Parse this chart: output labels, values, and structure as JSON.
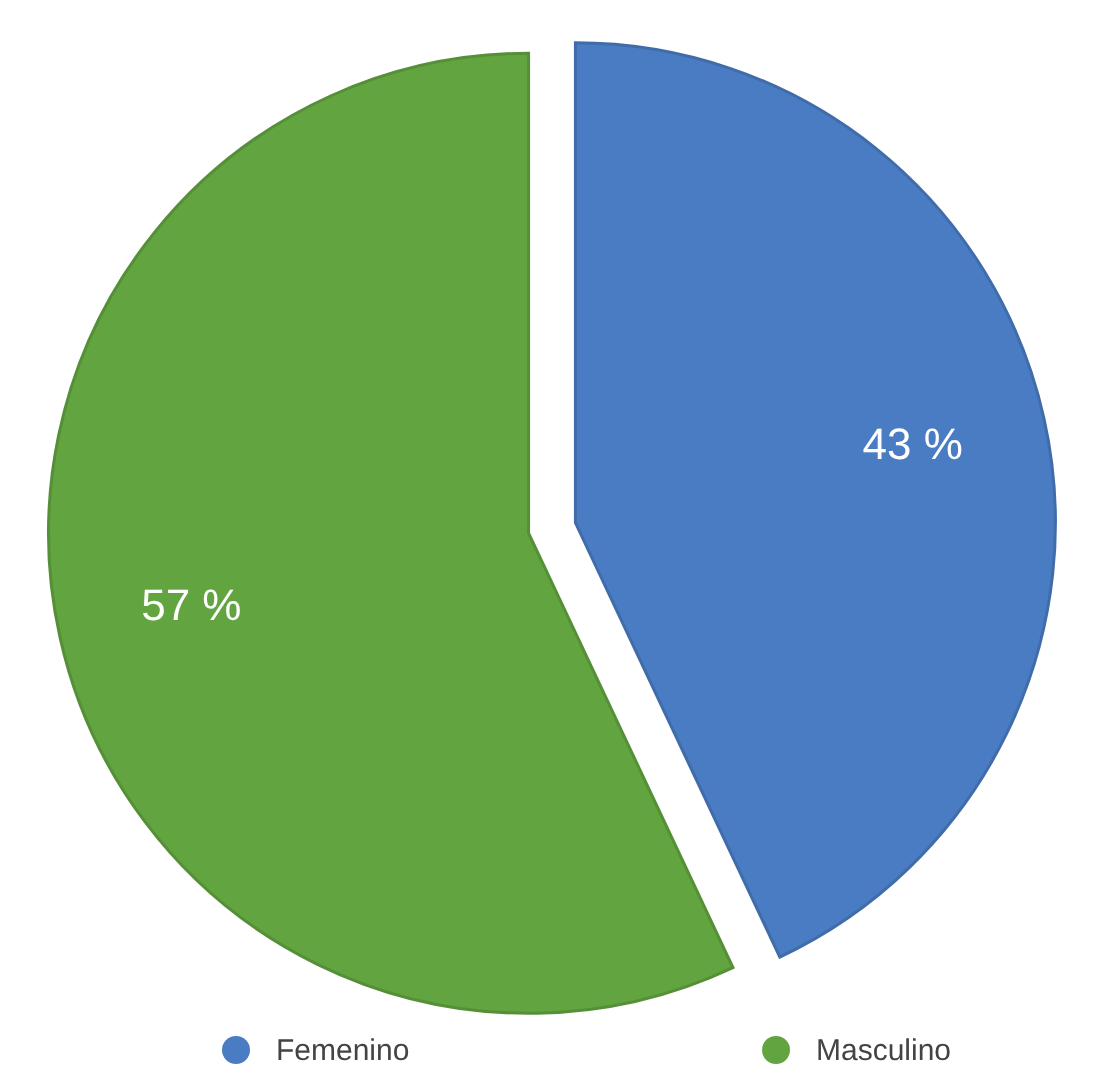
{
  "chart_data": {
    "type": "pie",
    "categories": [
      "Femenino",
      "Masculino"
    ],
    "values": [
      43,
      57
    ],
    "colors": [
      "#4a7cc4",
      "#62a540"
    ],
    "value_labels": [
      "43 %",
      "57 %"
    ],
    "legend": "bottom"
  }
}
